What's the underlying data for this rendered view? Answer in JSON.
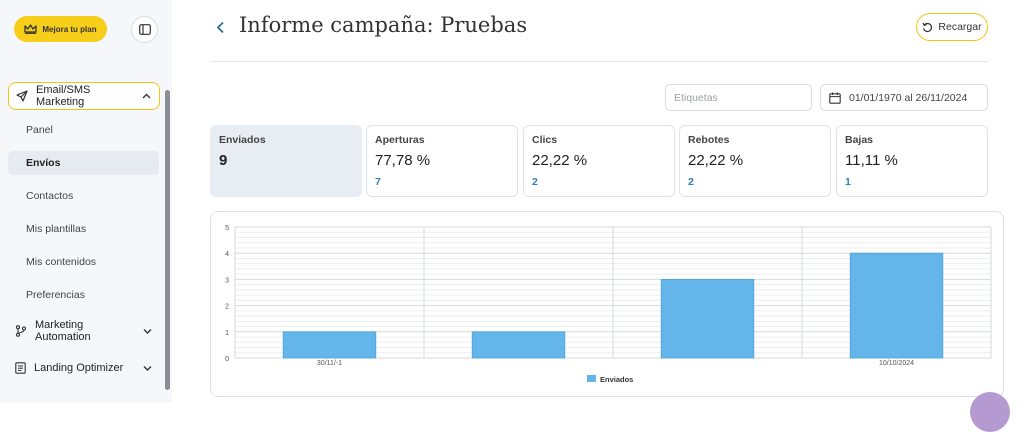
{
  "sidebar": {
    "upgrade_label": "Mejora tu plan",
    "section": {
      "label": "Email/SMS Marketing"
    },
    "sub_items": [
      {
        "label": "Panel",
        "active": false
      },
      {
        "label": "Envíos",
        "active": true
      },
      {
        "label": "Contactos",
        "active": false
      },
      {
        "label": "Mis plantillas",
        "active": false
      },
      {
        "label": "Mis contenidos",
        "active": false
      },
      {
        "label": "Preferencias",
        "active": false
      }
    ],
    "groups": [
      {
        "label": "Marketing Automation",
        "icon": "branch-icon"
      },
      {
        "label": "Landing Optimizer",
        "icon": "document-icon"
      }
    ]
  },
  "header": {
    "title": "Informe campaña: Pruebas",
    "reload_label": "Recargar"
  },
  "filters": {
    "tags_placeholder": "Etiquetas",
    "date_range": "01/01/1970 al 26/11/2024"
  },
  "stats": [
    {
      "label": "Enviados",
      "value": "9",
      "count": ""
    },
    {
      "label": "Aperturas",
      "value": "77,78 %",
      "count": "7"
    },
    {
      "label": "Clics",
      "value": "22,22 %",
      "count": "2"
    },
    {
      "label": "Rebotes",
      "value": "22,22 %",
      "count": "2"
    },
    {
      "label": "Bajas",
      "value": "11,11 %",
      "count": "1"
    }
  ],
  "colors": {
    "accent_yellow": "#f7cf1b",
    "bar_blue": "#63b5ea",
    "link_blue": "#2f7fb5"
  },
  "chart_data": {
    "type": "bar",
    "categories": [
      "30/11/-1",
      "",
      "",
      "10/10/2024"
    ],
    "series": [
      {
        "name": "Enviados",
        "values": [
          1,
          1,
          3,
          4
        ]
      }
    ],
    "ylim": [
      0,
      5
    ],
    "yticks": [
      "0",
      "1",
      "2",
      "3",
      "4",
      "5"
    ],
    "grid": true,
    "legend": "bottom"
  }
}
